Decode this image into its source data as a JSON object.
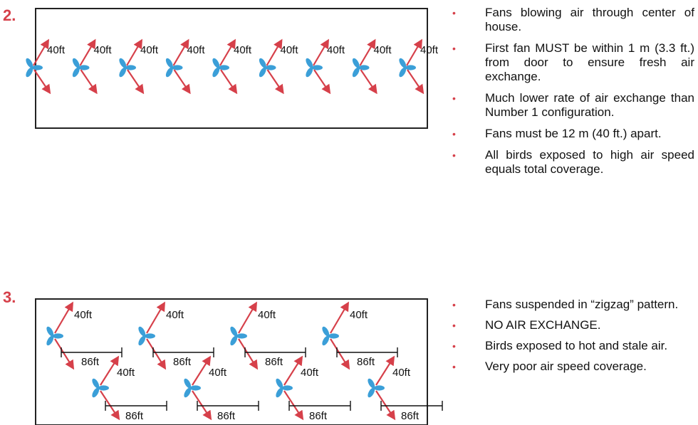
{
  "colors": {
    "arrow": "#d6404a",
    "fan": "#3b9fd8",
    "number": "#d6404a",
    "border": "#222222"
  },
  "icon": "fan-icon",
  "config2": {
    "number": "2.",
    "fan_label": "40ft",
    "fan_count": 9,
    "bullets": [
      "Fans blowing air through center of house.",
      "First fan MUST be within 1 m (3.3 ft.) from door to ensure fresh air exchange.",
      "Much lower rate of air exchange than Number 1 configuration.",
      "Fans must be 12 m (40 ft.) apart.",
      "All birds exposed to high air speed equals total coverage."
    ]
  },
  "config3": {
    "number": "3.",
    "fan_label": "40ft",
    "spacing_label": "86ft",
    "fans_per_row": 4,
    "bullets": [
      "Fans suspended in “zigzag” pattern.",
      "NO AIR EXCHANGE.",
      "Birds exposed to hot and stale air.",
      "Very poor air speed coverage."
    ]
  }
}
